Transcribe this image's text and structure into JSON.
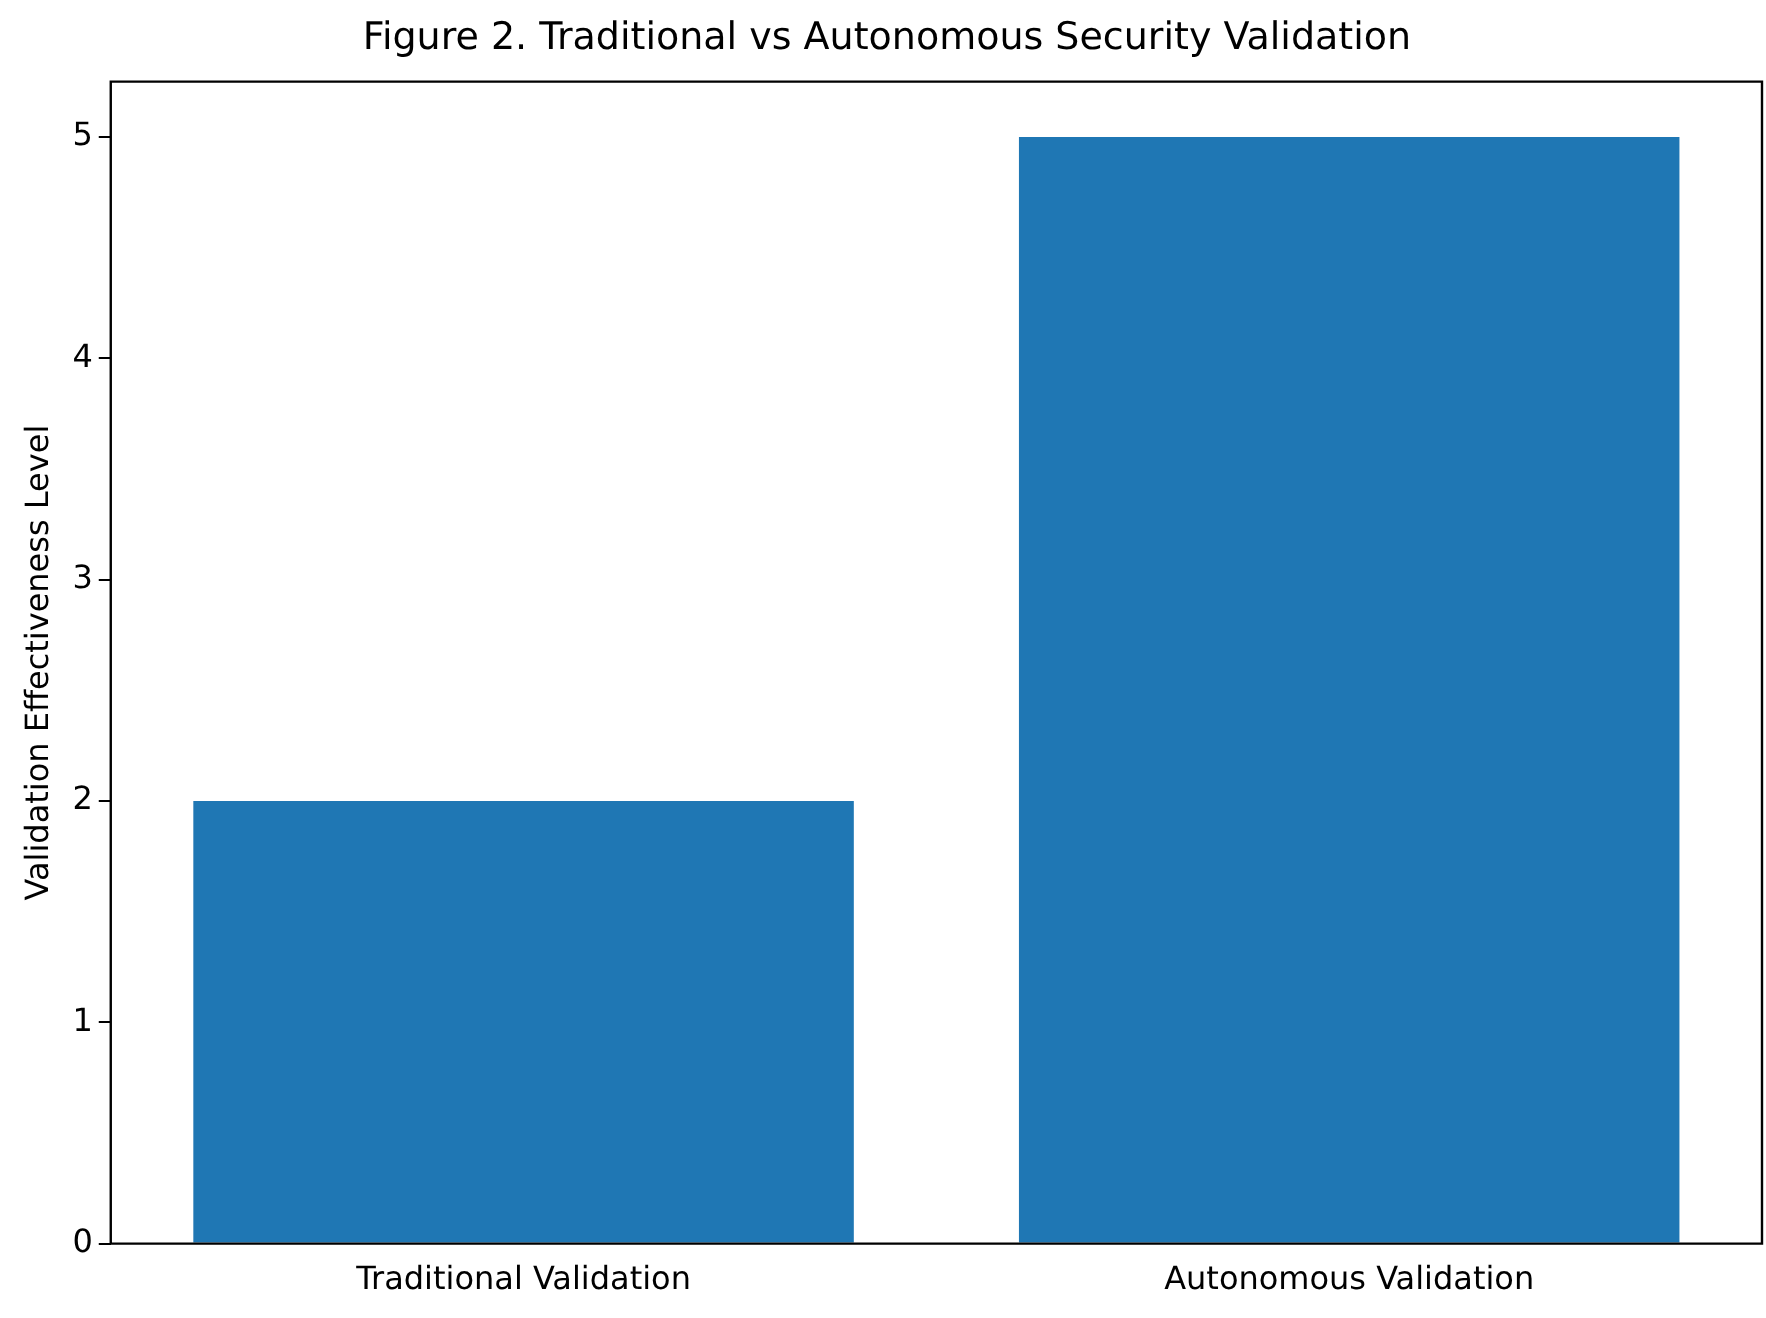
{
  "chart_data": {
    "type": "bar",
    "title": "Figure 2. Traditional vs Autonomous Security Validation",
    "ylabel": "Validation Effectiveness Level",
    "categories": [
      "Traditional Validation",
      "Autonomous Validation"
    ],
    "values": [
      2,
      5
    ],
    "color": "#1f77b4",
    "ylim": [
      0,
      5.25
    ],
    "yticks": [
      0,
      1,
      2,
      3,
      4,
      5
    ],
    "grid": false,
    "legend": false
  }
}
